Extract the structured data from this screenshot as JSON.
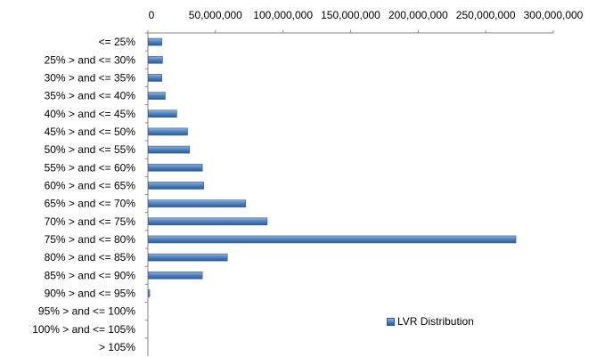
{
  "chart_data": {
    "type": "bar",
    "orientation": "horizontal",
    "categories": [
      "<= 25%",
      "25% > and <= 30%",
      "30% > and <= 35%",
      "35% > and <= 40%",
      "40% > and <= 45%",
      "45% > and <= 50%",
      "50% > and <= 55%",
      "55% > and <= 60%",
      "60% > and <= 65%",
      "65% > and <= 70%",
      "70% > and <= 75%",
      "75% > and <= 80%",
      "80% > and <= 85%",
      "85% > and <= 90%",
      "90% > and <= 95%",
      "95% > and <= 100%",
      "100% > and <= 105%",
      "> 105%"
    ],
    "series": [
      {
        "name": "LVR Distribution",
        "values": [
          10000000,
          10500000,
          10000000,
          12500000,
          21000000,
          29000000,
          30500000,
          40000000,
          41000000,
          72000000,
          88000000,
          272000000,
          58500000,
          40000000,
          1000000,
          0,
          0,
          0
        ]
      }
    ],
    "x_ticks": [
      "0",
      "50,000,000",
      "100,000,000",
      "150,000,000",
      "200,000,000",
      "250,000,000",
      "300,000,000"
    ],
    "xlim": [
      0,
      300000000
    ],
    "title": "",
    "xlabel": "",
    "ylabel": "",
    "legend_position": "bottom-right",
    "grid": false,
    "colors": {
      "bar": "#4f81bd",
      "bar_light": "#8db3e2",
      "bar_dark": "#2c5a8f",
      "axis": "#868686"
    }
  }
}
